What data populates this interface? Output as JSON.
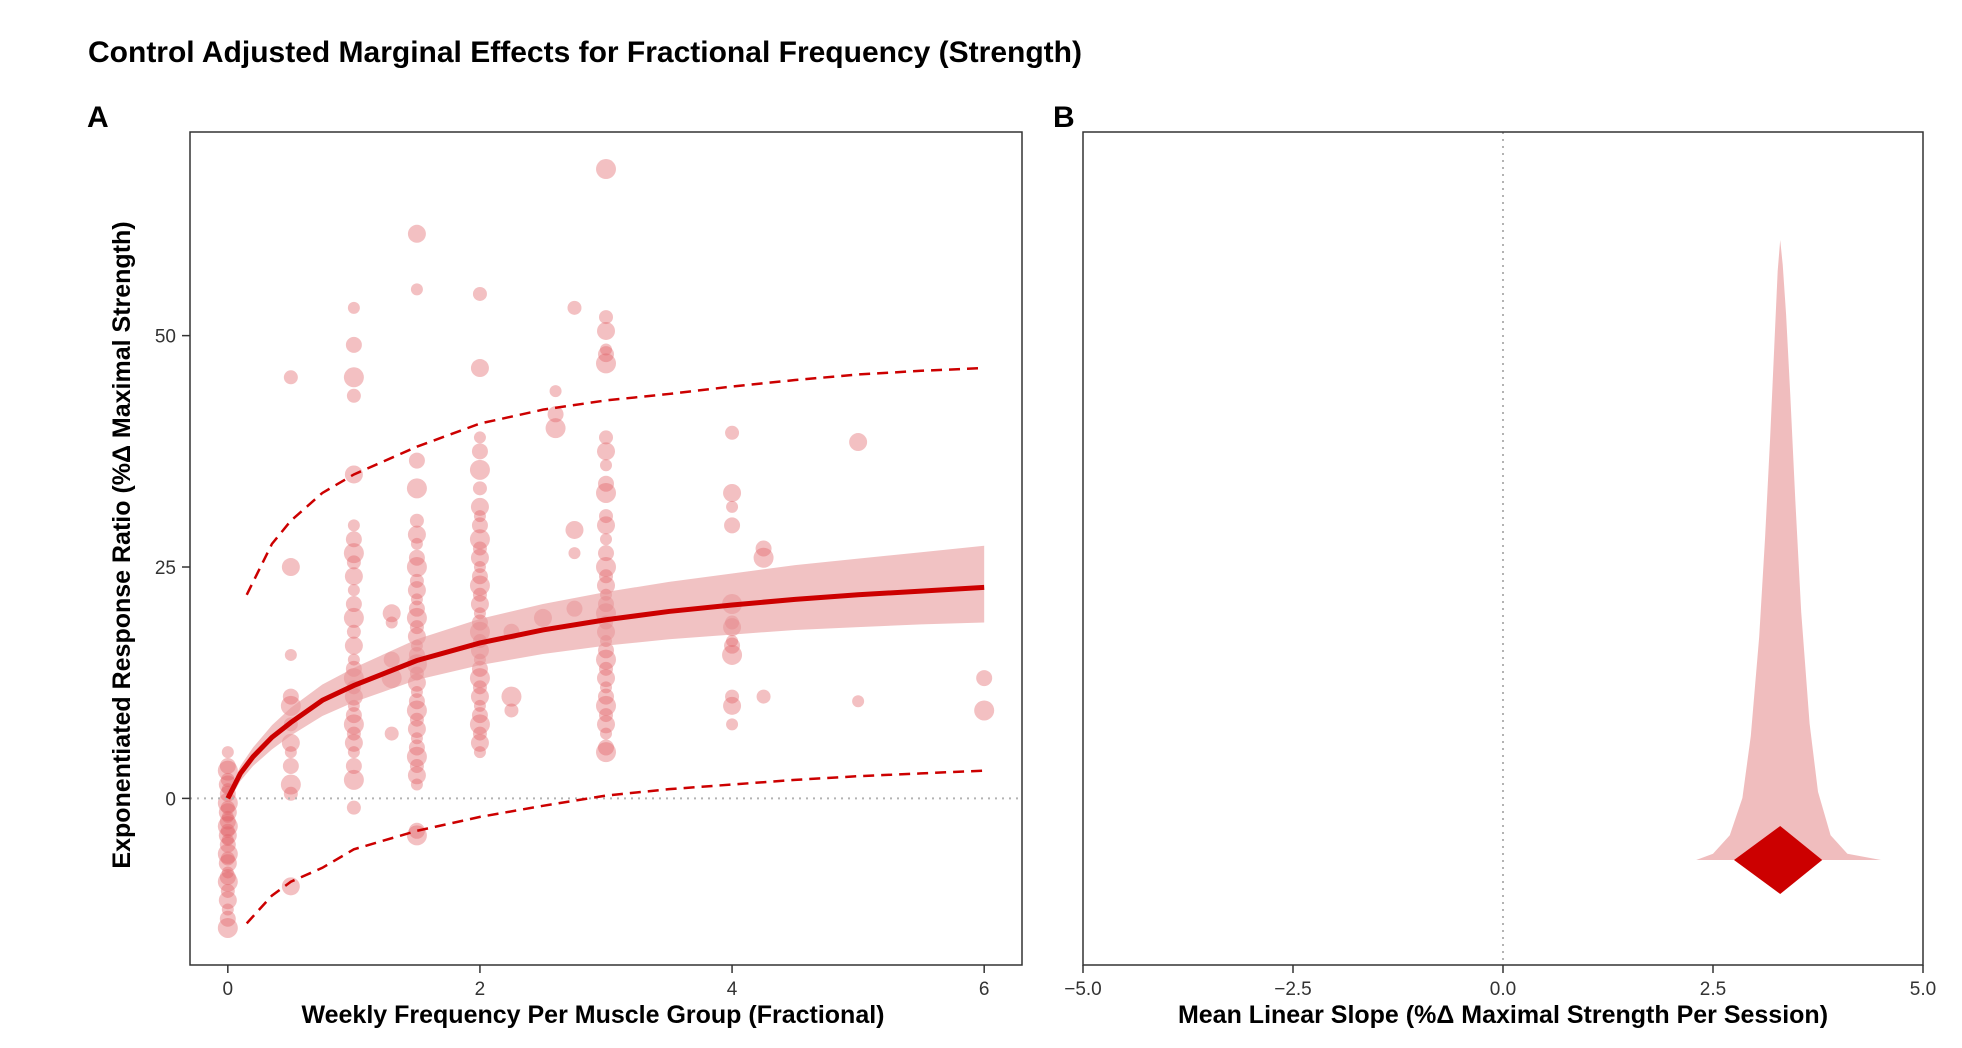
{
  "title": "Control Adjusted Marginal Effects for Fractional Frequency (Strength)",
  "panels": [
    {
      "tag": "A",
      "xlabel": "Weekly Frequency Per Muscle Group (Fractional)",
      "ylabel": "Exponentiated Response Ratio (%Δ Maximal Strength)"
    },
    {
      "tag": "B",
      "xlabel": "Mean Linear Slope (%Δ Maximal Strength Per Session)"
    }
  ],
  "colors": {
    "accent": "#cc0000",
    "light": "#e8999b",
    "point": "#e06266",
    "ref": "#b3b3b3"
  },
  "chart_data": [
    {
      "type": "scatter",
      "panel": "A",
      "xlabel": "Weekly Frequency Per Muscle Group (Fractional)",
      "ylabel": "Exponentiated Response Ratio (%Δ Maximal Strength)",
      "xlim": [
        -0.3,
        6.3
      ],
      "ylim": [
        -18,
        72
      ],
      "xticks": [
        0,
        2,
        4,
        6
      ],
      "yticks": [
        0,
        25,
        50
      ],
      "reference_line_y": 0,
      "grid": false,
      "points": [
        [
          0,
          5
        ],
        [
          0,
          3.5
        ],
        [
          0,
          3
        ],
        [
          0,
          2
        ],
        [
          0,
          1.5
        ],
        [
          0,
          1
        ],
        [
          0,
          0.5
        ],
        [
          0,
          -0.5
        ],
        [
          0,
          -1
        ],
        [
          0,
          -1.5
        ],
        [
          0,
          -2
        ],
        [
          0,
          -2.5
        ],
        [
          0,
          -3
        ],
        [
          0,
          -3.5
        ],
        [
          0,
          -4
        ],
        [
          0,
          -4.5
        ],
        [
          0,
          -5
        ],
        [
          0,
          -6
        ],
        [
          0,
          -6.5
        ],
        [
          0,
          -7
        ],
        [
          0,
          -8
        ],
        [
          0,
          -8.5
        ],
        [
          0,
          -9
        ],
        [
          0,
          -10
        ],
        [
          0,
          -11
        ],
        [
          0,
          -12
        ],
        [
          0,
          -13
        ],
        [
          0,
          -14
        ],
        [
          0.5,
          45.5
        ],
        [
          0.5,
          25
        ],
        [
          0.5,
          15.5
        ],
        [
          0.5,
          11
        ],
        [
          0.5,
          10
        ],
        [
          0.5,
          8
        ],
        [
          0.5,
          6
        ],
        [
          0.5,
          5
        ],
        [
          0.5,
          3.5
        ],
        [
          0.5,
          1.5
        ],
        [
          0.5,
          0.5
        ],
        [
          0.5,
          -9.5
        ],
        [
          1,
          53
        ],
        [
          1,
          49
        ],
        [
          1,
          45.5
        ],
        [
          1,
          43.5
        ],
        [
          1,
          35
        ],
        [
          1,
          29.5
        ],
        [
          1,
          28
        ],
        [
          1,
          26.5
        ],
        [
          1,
          25.5
        ],
        [
          1,
          24
        ],
        [
          1,
          22.5
        ],
        [
          1,
          21
        ],
        [
          1,
          19.5
        ],
        [
          1,
          18
        ],
        [
          1,
          16.5
        ],
        [
          1,
          15
        ],
        [
          1,
          14
        ],
        [
          1,
          13
        ],
        [
          1,
          12
        ],
        [
          1,
          11
        ],
        [
          1,
          10
        ],
        [
          1,
          9
        ],
        [
          1,
          8
        ],
        [
          1,
          7
        ],
        [
          1,
          6
        ],
        [
          1,
          5
        ],
        [
          1,
          3.5
        ],
        [
          1,
          2
        ],
        [
          1,
          -1
        ],
        [
          1.3,
          20
        ],
        [
          1.3,
          19
        ],
        [
          1.3,
          15
        ],
        [
          1.3,
          13
        ],
        [
          1.3,
          7
        ],
        [
          1.5,
          61
        ],
        [
          1.5,
          55
        ],
        [
          1.5,
          36.5
        ],
        [
          1.5,
          33.5
        ],
        [
          1.5,
          30
        ],
        [
          1.5,
          28.5
        ],
        [
          1.5,
          27.5
        ],
        [
          1.5,
          26
        ],
        [
          1.5,
          25
        ],
        [
          1.5,
          23.5
        ],
        [
          1.5,
          22.5
        ],
        [
          1.5,
          21.5
        ],
        [
          1.5,
          20.5
        ],
        [
          1.5,
          19.5
        ],
        [
          1.5,
          18.5
        ],
        [
          1.5,
          17.5
        ],
        [
          1.5,
          16.5
        ],
        [
          1.5,
          15.5
        ],
        [
          1.5,
          14.5
        ],
        [
          1.5,
          13.5
        ],
        [
          1.5,
          12.5
        ],
        [
          1.5,
          11.5
        ],
        [
          1.5,
          10.5
        ],
        [
          1.5,
          9.5
        ],
        [
          1.5,
          8.5
        ],
        [
          1.5,
          7.5
        ],
        [
          1.5,
          6.5
        ],
        [
          1.5,
          5.5
        ],
        [
          1.5,
          4.5
        ],
        [
          1.5,
          3.5
        ],
        [
          1.5,
          2.5
        ],
        [
          1.5,
          1.5
        ],
        [
          1.5,
          -3.5
        ],
        [
          1.5,
          -4
        ],
        [
          2,
          54.5
        ],
        [
          2,
          46.5
        ],
        [
          2,
          39
        ],
        [
          2,
          37.5
        ],
        [
          2,
          35.5
        ],
        [
          2,
          33.5
        ],
        [
          2,
          31.5
        ],
        [
          2,
          30.5
        ],
        [
          2,
          29.5
        ],
        [
          2,
          28
        ],
        [
          2,
          27
        ],
        [
          2,
          26
        ],
        [
          2,
          25
        ],
        [
          2,
          24
        ],
        [
          2,
          23
        ],
        [
          2,
          22
        ],
        [
          2,
          21
        ],
        [
          2,
          20
        ],
        [
          2,
          19
        ],
        [
          2,
          18
        ],
        [
          2,
          17
        ],
        [
          2,
          16
        ],
        [
          2,
          15
        ],
        [
          2,
          14
        ],
        [
          2,
          13
        ],
        [
          2,
          12
        ],
        [
          2,
          11
        ],
        [
          2,
          10
        ],
        [
          2,
          9
        ],
        [
          2,
          8
        ],
        [
          2,
          7
        ],
        [
          2,
          6
        ],
        [
          2,
          5
        ],
        [
          2.25,
          18
        ],
        [
          2.25,
          11
        ],
        [
          2.25,
          9.5
        ],
        [
          2.5,
          19.5
        ],
        [
          2.6,
          44
        ],
        [
          2.6,
          41.5
        ],
        [
          2.6,
          40
        ],
        [
          2.75,
          53
        ],
        [
          2.75,
          29
        ],
        [
          2.75,
          26.5
        ],
        [
          2.75,
          20.5
        ],
        [
          3,
          68
        ],
        [
          3,
          52
        ],
        [
          3,
          50.5
        ],
        [
          3,
          48.5
        ],
        [
          3,
          48
        ],
        [
          3,
          47
        ],
        [
          3,
          39
        ],
        [
          3,
          37.5
        ],
        [
          3,
          36
        ],
        [
          3,
          34
        ],
        [
          3,
          33
        ],
        [
          3,
          30.5
        ],
        [
          3,
          29.5
        ],
        [
          3,
          28
        ],
        [
          3,
          26.5
        ],
        [
          3,
          25
        ],
        [
          3,
          24
        ],
        [
          3,
          23
        ],
        [
          3,
          22
        ],
        [
          3,
          21
        ],
        [
          3,
          20
        ],
        [
          3,
          19
        ],
        [
          3,
          18
        ],
        [
          3,
          17
        ],
        [
          3,
          16
        ],
        [
          3,
          15
        ],
        [
          3,
          14
        ],
        [
          3,
          13
        ],
        [
          3,
          12
        ],
        [
          3,
          11
        ],
        [
          3,
          10
        ],
        [
          3,
          9
        ],
        [
          3,
          8
        ],
        [
          3,
          7
        ],
        [
          3,
          5.5
        ],
        [
          3,
          5
        ],
        [
          4,
          39.5
        ],
        [
          4,
          33
        ],
        [
          4,
          31.5
        ],
        [
          4,
          29.5
        ],
        [
          4,
          21
        ],
        [
          4,
          19
        ],
        [
          4,
          18.5
        ],
        [
          4,
          17
        ],
        [
          4,
          16.5
        ],
        [
          4,
          15.5
        ],
        [
          4,
          11
        ],
        [
          4,
          10
        ],
        [
          4,
          8
        ],
        [
          4.25,
          27
        ],
        [
          4.25,
          26
        ],
        [
          4.25,
          11
        ],
        [
          5,
          38.5
        ],
        [
          5,
          10.5
        ],
        [
          6,
          13
        ],
        [
          6,
          9.5
        ]
      ],
      "fit": {
        "x": [
          0,
          0.1,
          0.2,
          0.35,
          0.5,
          0.75,
          1,
          1.5,
          2,
          2.5,
          3,
          3.5,
          4,
          4.5,
          5,
          5.5,
          6
        ],
        "y": [
          0,
          2.7,
          4.5,
          6.6,
          8.2,
          10.6,
          12.2,
          14.9,
          16.8,
          18.2,
          19.3,
          20.2,
          20.9,
          21.5,
          22.0,
          22.4,
          22.8
        ]
      },
      "ci_band": {
        "x": [
          0,
          0.1,
          0.2,
          0.35,
          0.5,
          0.75,
          1,
          1.5,
          2,
          2.5,
          3,
          3.5,
          4,
          4.5,
          5,
          5.5,
          6
        ],
        "lower": [
          -0.5,
          1.9,
          3.5,
          5.3,
          6.8,
          8.9,
          10.4,
          12.8,
          14.4,
          15.6,
          16.5,
          17.2,
          17.7,
          18.2,
          18.5,
          18.8,
          19.0
        ],
        "upper": [
          0.5,
          3.5,
          5.5,
          7.9,
          9.8,
          12.3,
          14.1,
          17.2,
          19.4,
          21.0,
          22.3,
          23.4,
          24.3,
          25.2,
          25.9,
          26.6,
          27.3
        ]
      },
      "prediction_interval": {
        "x": [
          0.15,
          0.35,
          0.5,
          0.75,
          1,
          1.5,
          2,
          2.5,
          3,
          3.5,
          4,
          4.5,
          5,
          5.5,
          6
        ],
        "lower": [
          -13.5,
          -10.5,
          -9,
          -7.5,
          -5.5,
          -3.5,
          -2,
          -0.8,
          0.3,
          1,
          1.5,
          2,
          2.4,
          2.7,
          3
        ],
        "upper": [
          22,
          27.5,
          30,
          33,
          35,
          38,
          40.5,
          42,
          43,
          43.7,
          44.5,
          45.2,
          45.8,
          46.2,
          46.5
        ]
      }
    },
    {
      "type": "area",
      "panel": "B",
      "xlabel": "Mean Linear Slope (%Δ Maximal Strength Per Session)",
      "xlim": [
        -5,
        5
      ],
      "xticks": [
        -5.0,
        -2.5,
        0.0,
        2.5,
        5.0
      ],
      "xtick_labels": [
        "−5.0",
        "−2.5",
        "0.0",
        "2.5",
        "5.0"
      ],
      "reference_line_x": 0,
      "grid": false,
      "posterior": {
        "x": [
          2.3,
          2.5,
          2.7,
          2.85,
          2.95,
          3.05,
          3.12,
          3.18,
          3.23,
          3.27,
          3.3,
          3.33,
          3.37,
          3.42,
          3.48,
          3.55,
          3.65,
          3.75,
          3.9,
          4.1,
          4.5
        ],
        "density": [
          0,
          0.01,
          0.04,
          0.1,
          0.2,
          0.36,
          0.52,
          0.68,
          0.83,
          0.95,
          1.0,
          0.96,
          0.88,
          0.75,
          0.58,
          0.4,
          0.22,
          0.11,
          0.04,
          0.01,
          0
        ]
      },
      "point_estimate": {
        "value": 3.3,
        "lower": 2.75,
        "upper": 3.8
      }
    }
  ]
}
